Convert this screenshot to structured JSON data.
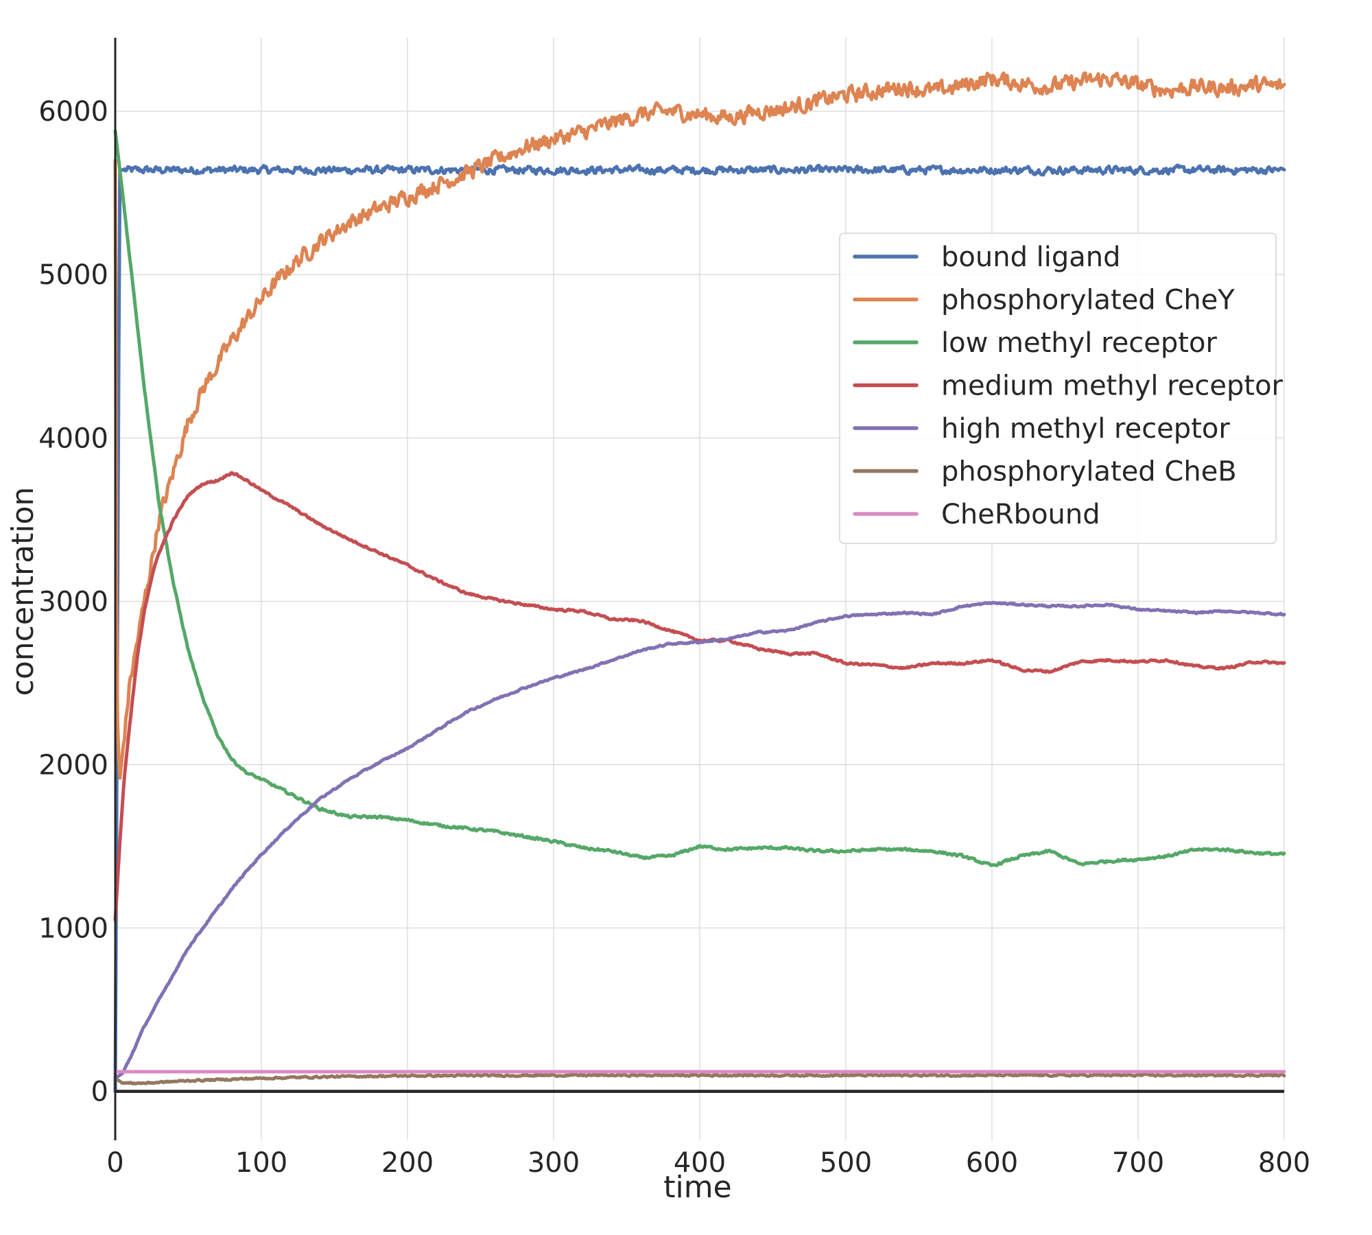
{
  "chart_data": {
    "type": "line",
    "title": "",
    "xlabel": "time",
    "ylabel": "concentration",
    "xlim": [
      0,
      800
    ],
    "ylim": [
      -300,
      6450
    ],
    "grid": true,
    "legend_position": "upper-right",
    "x_ticks": [
      "0",
      "100",
      "200",
      "300",
      "400",
      "500",
      "600",
      "700",
      "800"
    ],
    "y_ticks": [
      "0",
      "1000",
      "2000",
      "3000",
      "4000",
      "5000",
      "6000"
    ],
    "series": [
      {
        "name": "bound ligand",
        "color": "#4c72b0",
        "noise": 35,
        "x": [
          0,
          1,
          3,
          800
        ],
        "y": [
          0,
          1800,
          5640,
          5640
        ]
      },
      {
        "name": "phosphorylated CheY",
        "color": "#dd8452",
        "noise": 75,
        "x": [
          0,
          1,
          3,
          10,
          20,
          30,
          40,
          50,
          60,
          70,
          80,
          100,
          120,
          140,
          160,
          180,
          200,
          220,
          240,
          260,
          280,
          300,
          320,
          340,
          360,
          380,
          400,
          420,
          440,
          460,
          480,
          500,
          520,
          540,
          560,
          580,
          600,
          620,
          640,
          660,
          680,
          700,
          720,
          740,
          760,
          780,
          800
        ],
        "y": [
          5700,
          2400,
          1900,
          2500,
          3000,
          3500,
          3800,
          4100,
          4300,
          4450,
          4600,
          4850,
          5050,
          5200,
          5320,
          5400,
          5480,
          5550,
          5620,
          5700,
          5780,
          5830,
          5870,
          5930,
          5980,
          6000,
          5980,
          5960,
          6000,
          6020,
          6060,
          6100,
          6120,
          6150,
          6120,
          6160,
          6200,
          6170,
          6150,
          6180,
          6200,
          6160,
          6130,
          6150,
          6140,
          6160,
          6150
        ]
      },
      {
        "name": "low methyl receptor",
        "color": "#55a868",
        "noise": 12,
        "x": [
          0,
          5,
          10,
          15,
          20,
          25,
          30,
          40,
          50,
          60,
          70,
          80,
          90,
          100,
          120,
          140,
          160,
          180,
          200,
          220,
          240,
          260,
          280,
          300,
          320,
          340,
          360,
          380,
          400,
          420,
          440,
          460,
          480,
          500,
          520,
          540,
          560,
          580,
          600,
          620,
          640,
          660,
          680,
          700,
          720,
          740,
          760,
          780,
          800
        ],
        "y": [
          5880,
          5500,
          5100,
          4700,
          4300,
          3950,
          3600,
          3100,
          2700,
          2400,
          2180,
          2030,
          1950,
          1910,
          1820,
          1730,
          1680,
          1680,
          1660,
          1630,
          1610,
          1590,
          1560,
          1530,
          1490,
          1470,
          1430,
          1440,
          1500,
          1480,
          1490,
          1490,
          1470,
          1470,
          1480,
          1480,
          1470,
          1440,
          1380,
          1440,
          1470,
          1390,
          1410,
          1420,
          1440,
          1480,
          1480,
          1460,
          1450
        ]
      },
      {
        "name": "medium methyl receptor",
        "color": "#c44e52",
        "noise": 10,
        "x": [
          0,
          3,
          6,
          10,
          15,
          20,
          25,
          30,
          40,
          50,
          60,
          70,
          80,
          90,
          100,
          120,
          140,
          160,
          180,
          200,
          220,
          240,
          260,
          280,
          300,
          320,
          340,
          360,
          380,
          400,
          420,
          440,
          460,
          480,
          500,
          520,
          540,
          560,
          580,
          600,
          620,
          640,
          660,
          680,
          700,
          720,
          740,
          760,
          780,
          800
        ],
        "y": [
          1050,
          1500,
          1900,
          2250,
          2650,
          2950,
          3150,
          3300,
          3500,
          3650,
          3720,
          3740,
          3790,
          3740,
          3680,
          3580,
          3470,
          3380,
          3300,
          3220,
          3130,
          3050,
          3010,
          2980,
          2950,
          2940,
          2890,
          2880,
          2820,
          2760,
          2760,
          2710,
          2680,
          2680,
          2620,
          2610,
          2590,
          2620,
          2620,
          2640,
          2580,
          2570,
          2630,
          2640,
          2630,
          2640,
          2600,
          2590,
          2630,
          2620
        ]
      },
      {
        "name": "high methyl receptor",
        "color": "#8172b3",
        "noise": 8,
        "x": [
          0,
          5,
          10,
          20,
          30,
          40,
          50,
          60,
          70,
          80,
          90,
          100,
          120,
          140,
          160,
          180,
          200,
          220,
          240,
          260,
          280,
          300,
          320,
          340,
          360,
          380,
          400,
          420,
          440,
          460,
          480,
          500,
          520,
          540,
          560,
          580,
          600,
          620,
          640,
          660,
          680,
          700,
          720,
          740,
          760,
          780,
          800
        ],
        "y": [
          80,
          110,
          200,
          400,
          560,
          720,
          880,
          1000,
          1120,
          1240,
          1350,
          1450,
          1630,
          1790,
          1910,
          2010,
          2100,
          2210,
          2320,
          2400,
          2470,
          2530,
          2580,
          2640,
          2700,
          2740,
          2750,
          2770,
          2810,
          2820,
          2870,
          2910,
          2920,
          2930,
          2920,
          2970,
          2990,
          2980,
          2970,
          2970,
          2980,
          2950,
          2940,
          2930,
          2940,
          2930,
          2920
        ]
      },
      {
        "name": "phosphorylated CheB",
        "color": "#937860",
        "noise": 8,
        "x": [
          0,
          5,
          20,
          50,
          100,
          150,
          200,
          300,
          400,
          500,
          600,
          700,
          800
        ],
        "y": [
          80,
          50,
          50,
          65,
          80,
          90,
          95,
          98,
          98,
          98,
          98,
          98,
          98
        ]
      },
      {
        "name": "CheRbound",
        "color": "#da8bc3",
        "noise": 0,
        "x": [
          0,
          800
        ],
        "y": [
          120,
          120
        ]
      }
    ]
  }
}
